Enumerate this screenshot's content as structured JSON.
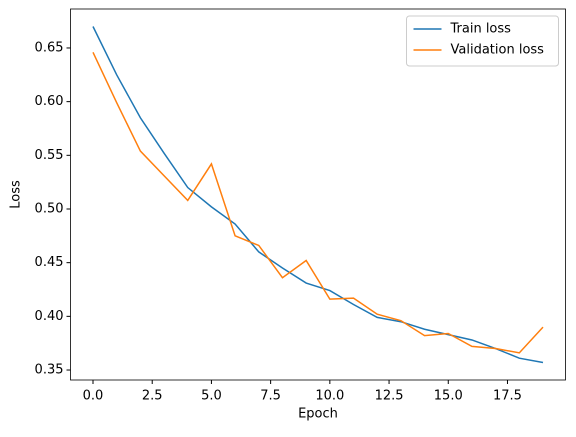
{
  "chart_data": {
    "type": "line",
    "x": [
      0,
      1,
      2,
      3,
      4,
      5,
      6,
      7,
      8,
      9,
      10,
      11,
      12,
      13,
      14,
      15,
      16,
      17,
      18,
      19
    ],
    "series": [
      {
        "name": "Train loss",
        "color": "#1f77b4",
        "values": [
          0.67,
          0.625,
          0.585,
          0.552,
          0.52,
          0.502,
          0.486,
          0.46,
          0.445,
          0.431,
          0.424,
          0.411,
          0.399,
          0.395,
          0.388,
          0.383,
          0.378,
          0.37,
          0.361,
          0.357
        ]
      },
      {
        "name": "Validation loss",
        "color": "#ff7f0e",
        "values": [
          0.646,
          0.599,
          0.554,
          0.531,
          0.508,
          0.542,
          0.475,
          0.466,
          0.436,
          0.452,
          0.416,
          0.417,
          0.402,
          0.396,
          0.382,
          0.384,
          0.372,
          0.37,
          0.366,
          0.39
        ]
      }
    ],
    "xlabel": "Epoch",
    "ylabel": "Loss",
    "xlim": [
      -0.95,
      19.95
    ],
    "xticks": [
      {
        "value": 0,
        "label": "0.0"
      },
      2.5,
      {
        "value": 5,
        "label": "5.0"
      },
      7.5,
      {
        "value": 10,
        "label": "10.0"
      },
      12.5,
      {
        "value": 15,
        "label": "15.0"
      },
      17.5
    ],
    "ylim": [
      0.3407,
      0.6863
    ],
    "yticks": [
      0.35,
      {
        "value": 0.4,
        "label": "0.40"
      },
      0.45,
      {
        "value": 0.5,
        "label": "0.50"
      },
      0.55,
      {
        "value": 0.6,
        "label": "0.60"
      },
      0.65
    ],
    "legend": "upper right"
  }
}
